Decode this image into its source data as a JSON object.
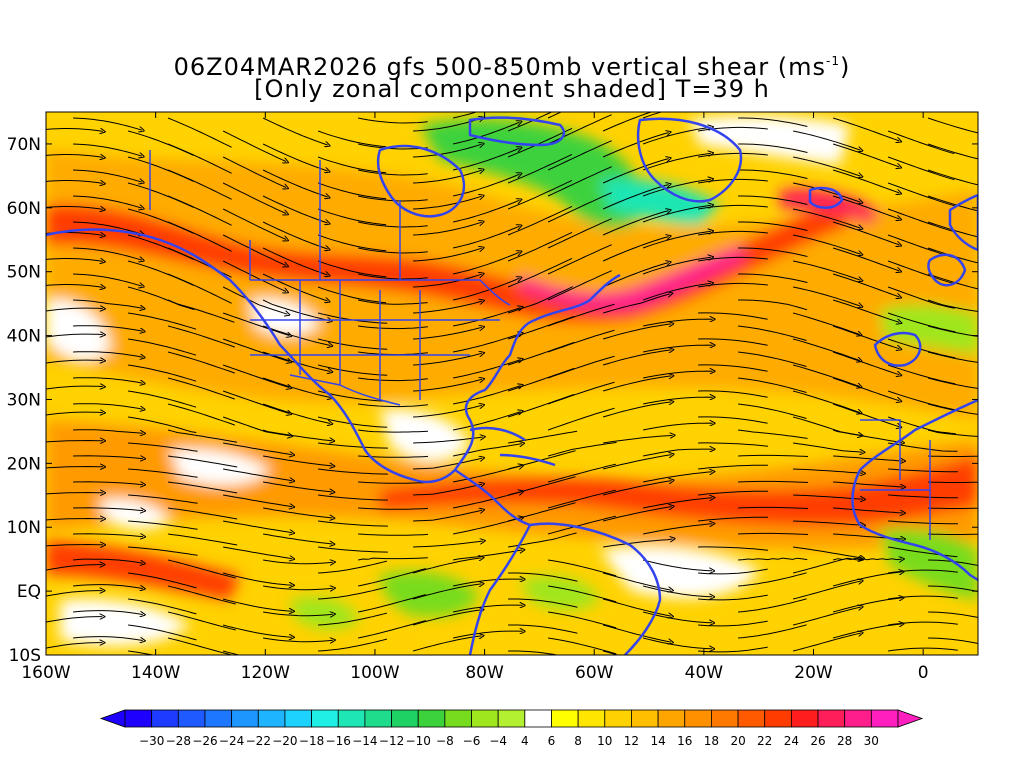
{
  "title": {
    "line1_prefix": "06Z04MAR2026 gfs 500-850mb vertical shear (ms",
    "line1_sup": "-1",
    "line1_suffix": ")",
    "line2": "[Only zonal component shaded] T=39 h"
  },
  "map": {
    "lon_range": [
      -160,
      10
    ],
    "lat_range": [
      -10,
      75
    ],
    "x_ticks": [
      {
        "value": -160,
        "label": "160W"
      },
      {
        "value": -140,
        "label": "140W"
      },
      {
        "value": -120,
        "label": "120W"
      },
      {
        "value": -100,
        "label": "100W"
      },
      {
        "value": -80,
        "label": "80W"
      },
      {
        "value": -60,
        "label": "60W"
      },
      {
        "value": -40,
        "label": "40W"
      },
      {
        "value": -20,
        "label": "20W"
      },
      {
        "value": 0,
        "label": "0"
      }
    ],
    "y_ticks": [
      {
        "value": 70,
        "label": "70N"
      },
      {
        "value": 60,
        "label": "60N"
      },
      {
        "value": 50,
        "label": "50N"
      },
      {
        "value": 40,
        "label": "40N"
      },
      {
        "value": 30,
        "label": "30N"
      },
      {
        "value": 20,
        "label": "20N"
      },
      {
        "value": 10,
        "label": "10N"
      },
      {
        "value": 0,
        "label": "EQ"
      },
      {
        "value": -10,
        "label": "10S"
      }
    ],
    "colors": {
      "coastline": "#3344ee",
      "streamline": "#000000"
    }
  },
  "colorbar": {
    "levels": [
      -30,
      -28,
      -26,
      -24,
      -22,
      -20,
      -18,
      -16,
      -14,
      -12,
      -10,
      -8,
      -6,
      -4,
      4,
      6,
      8,
      10,
      12,
      14,
      16,
      18,
      20,
      22,
      24,
      26,
      28,
      30
    ],
    "colors": [
      "#1e00ff",
      "#1e3cff",
      "#1e5aff",
      "#1e78ff",
      "#1e96ff",
      "#1eb4ff",
      "#1ed2ff",
      "#1ef0e6",
      "#1ee6b4",
      "#1edc8c",
      "#1ed264",
      "#3cd23c",
      "#78dc1e",
      "#a0e61e",
      "#b4f032",
      "#ffffff",
      "#ffff00",
      "#ffe600",
      "#ffd200",
      "#ffbe00",
      "#ffa500",
      "#ff9100",
      "#ff7800",
      "#ff5a00",
      "#ff3c00",
      "#ff1e1e",
      "#ff1e5a",
      "#ff1e8c",
      "#ff1ebe"
    ]
  }
}
